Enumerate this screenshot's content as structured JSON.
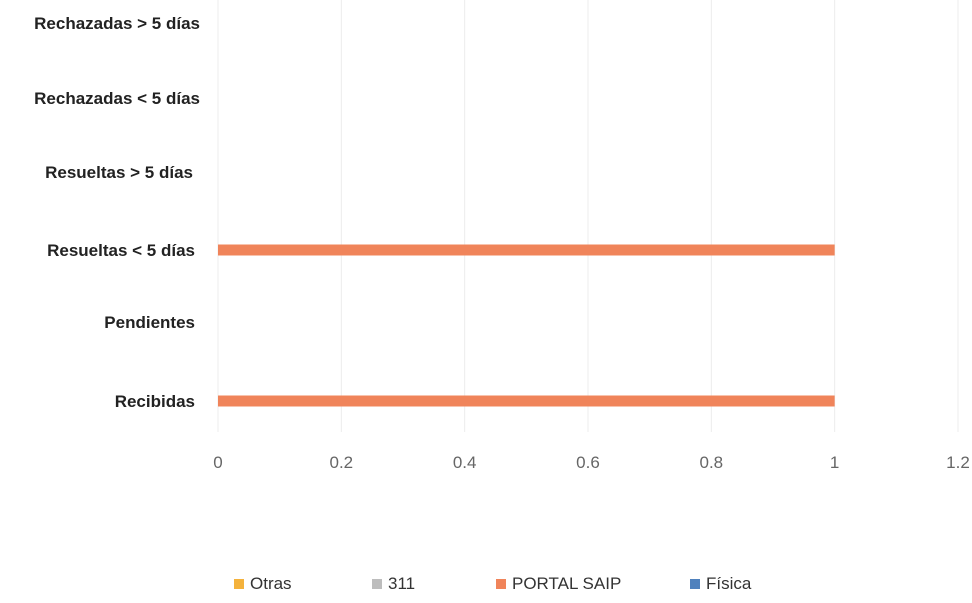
{
  "chart_data": {
    "type": "bar",
    "orientation": "horizontal",
    "title": "",
    "xlabel": "",
    "ylabel": "",
    "categories": [
      "Recibidas",
      "Pendientes",
      "Resueltas < 5 días",
      "Resueltas > 5 días",
      "Rechazadas  < 5 días",
      "Rechazadas  > 5 días"
    ],
    "category_labels": [
      "Recibidas",
      "Pendientes",
      "Resueltas < 5 días",
      "Resueltas > 5 días",
      "Rechazadas  < 5 días",
      "Rechazadas  > 5 días"
    ],
    "xlim": [
      0,
      1.2
    ],
    "xticks": [
      "0",
      "0.2",
      "0.4",
      "0.6",
      "0.8",
      "1",
      "1.2"
    ],
    "xtick_values": [
      0,
      0.2,
      0.4,
      0.6,
      0.8,
      1,
      1.2
    ],
    "grid": true,
    "legend_position": "bottom",
    "series": [
      {
        "name": "Física",
        "color": "#4f81bd",
        "values": [
          0,
          0,
          0,
          0,
          0,
          0
        ]
      },
      {
        "name": "PORTAL SAIP",
        "color": "#f0845a",
        "values": [
          1,
          0,
          1,
          0,
          0,
          0
        ]
      },
      {
        "name": "311",
        "color": "#bdbdbd",
        "values": [
          0,
          0,
          0,
          0,
          0,
          0
        ]
      },
      {
        "name": "Otras",
        "color": "#f4b23c",
        "values": [
          0,
          0,
          0,
          0,
          0,
          0
        ]
      }
    ],
    "legend_order": [
      "Otras",
      "311",
      "PORTAL SAIP",
      "Física"
    ]
  }
}
